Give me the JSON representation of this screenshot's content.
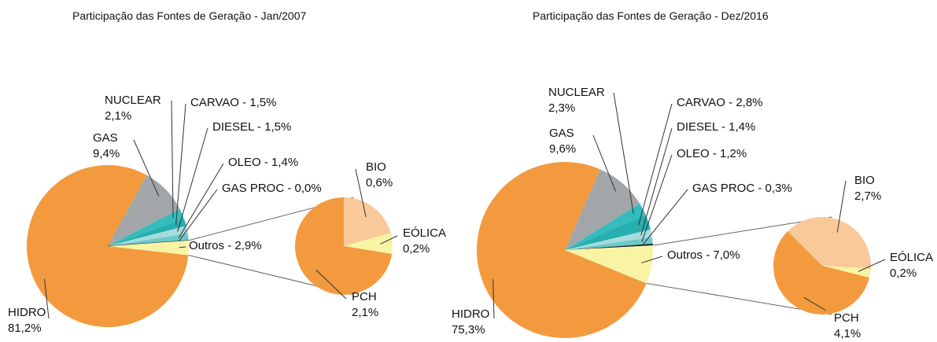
{
  "chart_data": [
    {
      "type": "pie-of-pie",
      "title": "Participação das Fontes de Geração - Jan/2007",
      "categories": [
        "HIDRO",
        "GAS",
        "NUCLEAR",
        "CARVAO",
        "DIESEL",
        "OLEO",
        "GAS PROC",
        "Outros"
      ],
      "values": [
        81.2,
        9.4,
        2.1,
        1.5,
        1.5,
        1.4,
        0.0,
        2.9
      ],
      "value_labels": [
        "81,2%",
        "9,4%",
        "2,1%",
        "1,5%",
        "1,5%",
        "1,4%",
        "0,0%",
        "2,9%"
      ],
      "colors": [
        "#f39a3f",
        "#a3a6a9",
        "#35bcbc",
        "#27aeb0",
        "#a6dcdc",
        "#6cc9c9",
        "#1c1c1c",
        "#f8f4a4"
      ],
      "sub": {
        "categories": [
          "BIO",
          "EÓLICA",
          "PCH"
        ],
        "values": [
          0.6,
          0.2,
          2.1
        ],
        "value_labels": [
          "0,6%",
          "0,2%",
          "2,1%"
        ],
        "colors": [
          "#f9c99a",
          "#f8f4a4",
          "#f39a3f"
        ]
      }
    },
    {
      "type": "pie-of-pie",
      "title": "Participação das Fontes de Geração - Dez/2016",
      "categories": [
        "HIDRO",
        "GAS",
        "NUCLEAR",
        "CARVAO",
        "DIESEL",
        "OLEO",
        "GAS PROC",
        "Outros"
      ],
      "values": [
        75.3,
        9.6,
        2.3,
        2.8,
        1.4,
        1.2,
        0.3,
        7.0
      ],
      "value_labels": [
        "75,3%",
        "9,6%",
        "2,3%",
        "2,8%",
        "1,4%",
        "1,2%",
        "0,3%",
        "7,0%"
      ],
      "colors": [
        "#f39a3f",
        "#a3a6a9",
        "#35bcbc",
        "#27aeb0",
        "#a6dcdc",
        "#6cc9c9",
        "#1c1c1c",
        "#f8f4a4"
      ],
      "sub": {
        "categories": [
          "BIO",
          "EÓLICA",
          "PCH"
        ],
        "values": [
          2.7,
          0.2,
          4.1
        ],
        "value_labels": [
          "2,7%",
          "0,2%",
          "4,1%"
        ],
        "colors": [
          "#f9c99a",
          "#f8f4a4",
          "#f39a3f"
        ]
      }
    }
  ]
}
